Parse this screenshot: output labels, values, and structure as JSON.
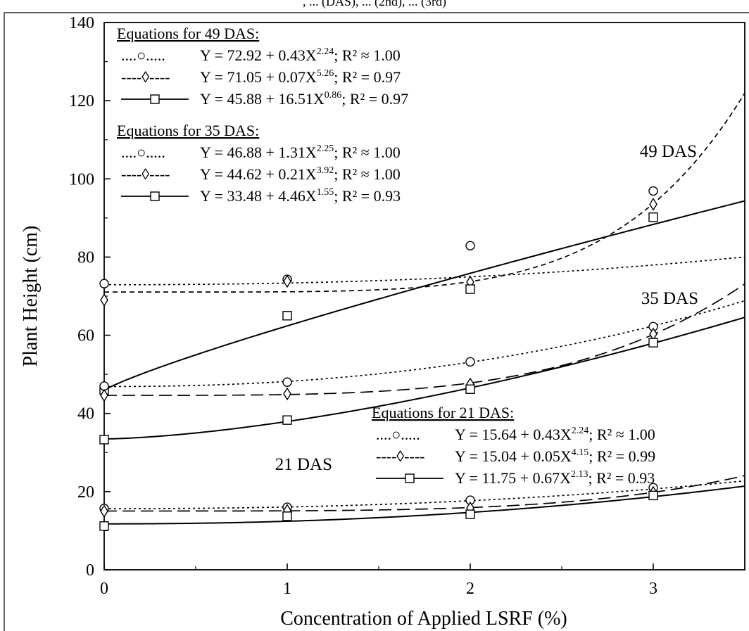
{
  "chart_data": {
    "type": "scatter",
    "top_caption_fragment": ", ... (DAS), ... (2nd), ... (3rd)",
    "xlabel": "Concentration  of Applied LSRF (%)",
    "ylabel": "Plant Height (cm)",
    "xlim": [
      0,
      3.5
    ],
    "ylim": [
      0,
      140
    ],
    "xticks": [
      "0",
      "1",
      "2",
      "3"
    ],
    "yticks": [
      "0",
      "20",
      "40",
      "60",
      "80",
      "100",
      "120",
      "140"
    ],
    "grid": false,
    "x": [
      0,
      1,
      2,
      3
    ],
    "series": [
      {
        "group": "49 DAS",
        "marker": "circle",
        "line": "dotted",
        "values": [
          73.2,
          74.3,
          82.9,
          96.9
        ],
        "fit": {
          "a": 72.92,
          "b": 0.43,
          "c": 2.24
        }
      },
      {
        "group": "49 DAS",
        "marker": "diamond",
        "line": "dashed",
        "values": [
          69.0,
          73.8,
          73.6,
          93.5
        ],
        "fit": {
          "a": 71.05,
          "b": 0.07,
          "c": 5.26
        }
      },
      {
        "group": "49 DAS",
        "marker": "square",
        "line": "solid",
        "values": [
          46.0,
          65.0,
          71.8,
          90.2
        ],
        "fit": {
          "a": 45.88,
          "b": 16.51,
          "c": 0.86
        }
      },
      {
        "group": "35 DAS",
        "marker": "circle",
        "line": "dotted",
        "values": [
          47.0,
          48.0,
          53.2,
          62.2
        ],
        "fit": {
          "a": 46.88,
          "b": 1.31,
          "c": 2.25
        }
      },
      {
        "group": "35 DAS",
        "marker": "diamond",
        "line": "longdash",
        "values": [
          44.6,
          45.0,
          47.5,
          60.3
        ],
        "fit": {
          "a": 44.62,
          "b": 0.21,
          "c": 3.92
        }
      },
      {
        "group": "35 DAS",
        "marker": "square",
        "line": "solid",
        "values": [
          33.3,
          38.3,
          46.2,
          58.1
        ],
        "fit": {
          "a": 33.48,
          "b": 4.46,
          "c": 1.55
        }
      },
      {
        "group": "21 DAS",
        "marker": "circle",
        "line": "dotted",
        "values": [
          15.7,
          16.0,
          17.8,
          21.0
        ],
        "fit": {
          "a": 15.64,
          "b": 0.43,
          "c": 2.24
        }
      },
      {
        "group": "21 DAS",
        "marker": "diamond",
        "line": "longdash",
        "values": [
          15.0,
          15.2,
          15.8,
          19.8
        ],
        "fit": {
          "a": 15.04,
          "b": 0.05,
          "c": 4.15
        }
      },
      {
        "group": "21 DAS",
        "marker": "square",
        "line": "solid",
        "values": [
          11.2,
          13.7,
          14.2,
          19.0
        ],
        "fit": {
          "a": 11.75,
          "b": 0.67,
          "c": 2.13
        }
      }
    ],
    "annotations": [
      "49 DAS",
      "35 DAS",
      "21 DAS"
    ],
    "legends": [
      {
        "title": "Equations for 49 DAS:",
        "entries": [
          {
            "sample": "....○.....",
            "eq": "Y = 72.92 + 0.43X",
            "exp": "2.24",
            "r2": ";  R² ≈ 1.00"
          },
          {
            "sample": "----◊----",
            "eq": "Y = 71.05 + 0.07X",
            "exp": "5.26",
            "r2": ";  R² = 0.97"
          },
          {
            "sample": "",
            "eq": "Y = 45.88 + 16.51X",
            "exp": "0.86",
            "r2": ";  R² = 0.97"
          }
        ]
      },
      {
        "title": "Equations for 35 DAS:",
        "entries": [
          {
            "sample": "....○.....",
            "eq": "Y = 46.88 + 1.31X",
            "exp": "2.25",
            "r2": ";  R² ≈ 1.00"
          },
          {
            "sample": "----◊----",
            "eq": "Y = 44.62 + 0.21X",
            "exp": "3.92",
            "r2": ";  R² ≈ 1.00"
          },
          {
            "sample": "",
            "eq": "Y = 33.48 + 4.46X",
            "exp": "1.55",
            "r2": ";  R² = 0.93"
          }
        ]
      },
      {
        "title": "Equations for 21 DAS:",
        "entries": [
          {
            "sample": "....○.....",
            "eq": "Y = 15.64 + 0.43X",
            "exp": "2.24",
            "r2": ";  R² ≈ 1.00"
          },
          {
            "sample": "----◊----",
            "eq": "Y = 15.04 + 0.05X",
            "exp": "4.15",
            "r2": ";  R² = 0.99"
          },
          {
            "sample": "",
            "eq": "Y = 11.75 + 0.67X",
            "exp": "2.13",
            "r2": ";  R² = 0.93"
          }
        ]
      }
    ]
  }
}
